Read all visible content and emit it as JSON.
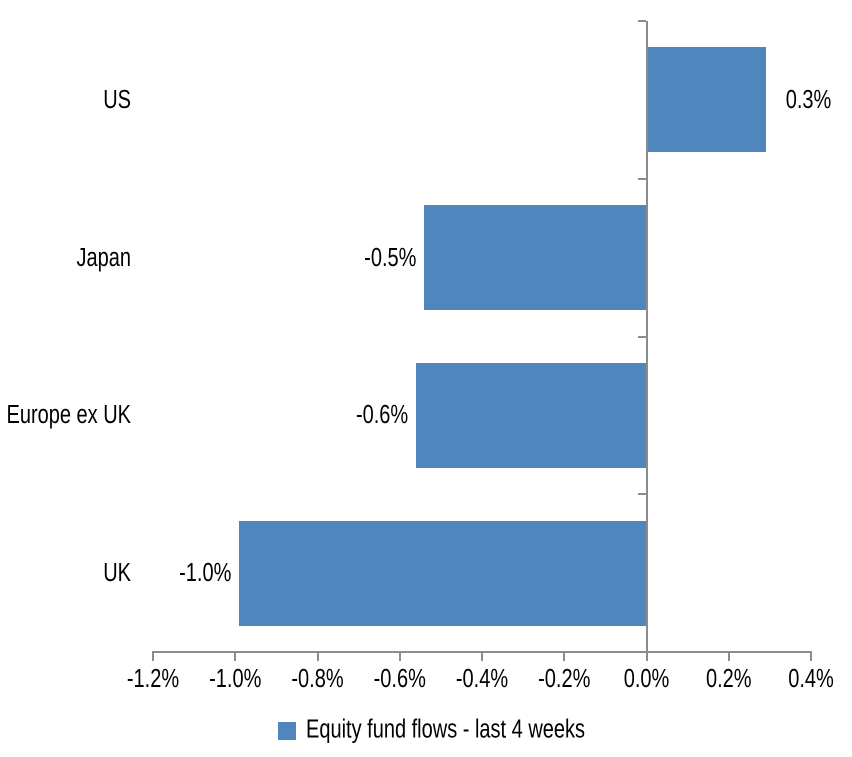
{
  "chart_data": {
    "type": "bar",
    "orientation": "horizontal",
    "title": "",
    "categories": [
      "US",
      "Japan",
      "Europe ex UK",
      "UK"
    ],
    "values": [
      0.3,
      -0.5,
      -0.6,
      -1.0
    ],
    "value_unit": "%",
    "data_labels": [
      "0.3%",
      "-0.5%",
      "-0.6%",
      "-1.0%"
    ],
    "values_measured_from_bars": [
      0.29,
      -0.54,
      -0.56,
      -0.99
    ],
    "x_axis": {
      "min": -1.2,
      "max": 0.4,
      "tick_step": 0.2,
      "tick_values": [
        -1.2,
        -1.0,
        -0.8,
        -0.6,
        -0.4,
        -0.2,
        0.0,
        0.2,
        0.4
      ],
      "tick_labels": [
        "-1.2%",
        "-1.0%",
        "-0.8%",
        "-0.6%",
        "-0.4%",
        "-0.2%",
        "0.0%",
        "0.2%",
        "0.4%"
      ]
    },
    "legend": {
      "label": "Equity fund flows - last 4 weeks",
      "position": "bottom",
      "marker": "square"
    },
    "grid": false,
    "colors": {
      "bar": "#4f86be",
      "axis": "#8c8c8c",
      "text": "#000000",
      "background": "#ffffff"
    }
  }
}
